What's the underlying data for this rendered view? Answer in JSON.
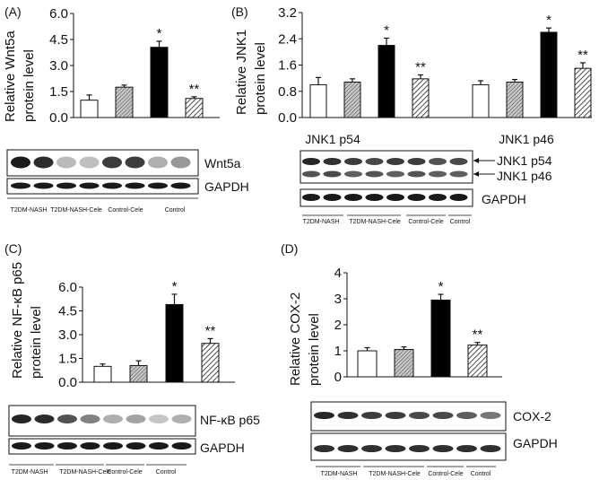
{
  "colors": {
    "ink": "#111111",
    "bar_white": "#ffffff",
    "bar_black": "#000000",
    "blot_band": "#1a1a1a"
  },
  "chart_data": [
    {
      "type": "bar",
      "panel_label": "(A)",
      "ylabel": [
        "Relative Wnt5a",
        "protein level"
      ],
      "ylim": [
        0,
        6.0
      ],
      "yticks": [
        "0.0",
        "1.5",
        "3.0",
        "4.5",
        "6.0"
      ],
      "categories": [
        "T2DM-NASH",
        "T2DM-NASH-Cele",
        "Control-Cele",
        "Control"
      ],
      "values": [
        1.0,
        1.75,
        4.05,
        1.1
      ],
      "errors": [
        0.3,
        0.12,
        0.35,
        0.1
      ],
      "fills": [
        "white",
        "dense-hatch",
        "black",
        "diag-hatch"
      ],
      "annotations": [
        "",
        "",
        "*",
        "**"
      ]
    },
    {
      "type": "bar",
      "panel_label": "(B)",
      "ylabel": [
        "Relative JNK1",
        "protein level"
      ],
      "ylim": [
        0,
        3.2
      ],
      "yticks": [
        "0.0",
        "0.8",
        "1.6",
        "2.4",
        "3.2"
      ],
      "groups": [
        "JNK1 p54",
        "JNK1 p46"
      ],
      "categories": [
        "T2DM-NASH",
        "T2DM-NASH-Cele",
        "Control-Cele",
        "Control"
      ],
      "series": [
        {
          "values": [
            1.0,
            1.08,
            2.2,
            1.18
          ],
          "errors": [
            0.22,
            0.1,
            0.22,
            0.12
          ],
          "annotations": [
            "",
            "",
            "*",
            "**"
          ]
        },
        {
          "values": [
            1.0,
            1.08,
            2.6,
            1.5
          ],
          "errors": [
            0.12,
            0.08,
            0.13,
            0.17
          ],
          "annotations": [
            "",
            "",
            "*",
            "**"
          ]
        }
      ],
      "fills": [
        "white",
        "dense-hatch",
        "black",
        "diag-hatch"
      ]
    },
    {
      "type": "bar",
      "panel_label": "(C)",
      "ylabel": [
        "Relative NF-κB p65",
        "protein level"
      ],
      "ylim": [
        0,
        6.0
      ],
      "yticks": [
        "0.0",
        "1.5",
        "3.0",
        "4.5",
        "6.0"
      ],
      "categories": [
        "T2DM-NASH",
        "T2DM-NASH-Cele",
        "Control-Cele",
        "Control"
      ],
      "values": [
        1.0,
        1.05,
        4.9,
        2.45
      ],
      "errors": [
        0.15,
        0.3,
        0.65,
        0.3
      ],
      "fills": [
        "white",
        "dense-hatch",
        "black",
        "diag-hatch"
      ],
      "annotations": [
        "",
        "",
        "*",
        "**"
      ]
    },
    {
      "type": "bar",
      "panel_label": "(D)",
      "ylabel": [
        "Relative COX-2",
        "protein level"
      ],
      "ylim": [
        0,
        4
      ],
      "yticks": [
        "0",
        "1",
        "2",
        "3",
        "4"
      ],
      "categories": [
        "T2DM-NASH",
        "T2DM-NASH-Cele",
        "Control-Cele",
        "Control"
      ],
      "values": [
        1.0,
        1.05,
        2.95,
        1.22
      ],
      "errors": [
        0.12,
        0.1,
        0.22,
        0.1
      ],
      "fills": [
        "white",
        "dense-hatch",
        "black",
        "diag-hatch"
      ],
      "annotations": [
        "",
        "",
        "*",
        "**"
      ]
    }
  ],
  "blots": {
    "A": {
      "labels": [
        "Wnt5a",
        "GAPDH"
      ],
      "lanes": [
        "T2DM-NASH",
        "T2DM-NASH-Cele",
        "Control-Cele",
        "Control"
      ]
    },
    "B": {
      "group_labels": [
        "JNK1 p54",
        "JNK1 p46"
      ],
      "labels": [
        "JNK1 p54",
        "JNK1 p46",
        "GAPDH"
      ],
      "lanes": [
        "T2DM-NASH",
        "T2DM-NASH-Cele",
        "Control-Cele",
        "Control"
      ]
    },
    "C": {
      "labels": [
        "NF-κB p65",
        "GAPDH"
      ],
      "lanes": [
        "T2DM-NASH",
        "T2DM-NASH-Cele",
        "Control-Cele",
        "Control"
      ]
    },
    "D": {
      "labels": [
        "COX-2",
        "GAPDH"
      ],
      "lanes": [
        "T2DM-NASH",
        "T2DM-NASH-Cele",
        "Control-Cele",
        "Control"
      ]
    }
  }
}
